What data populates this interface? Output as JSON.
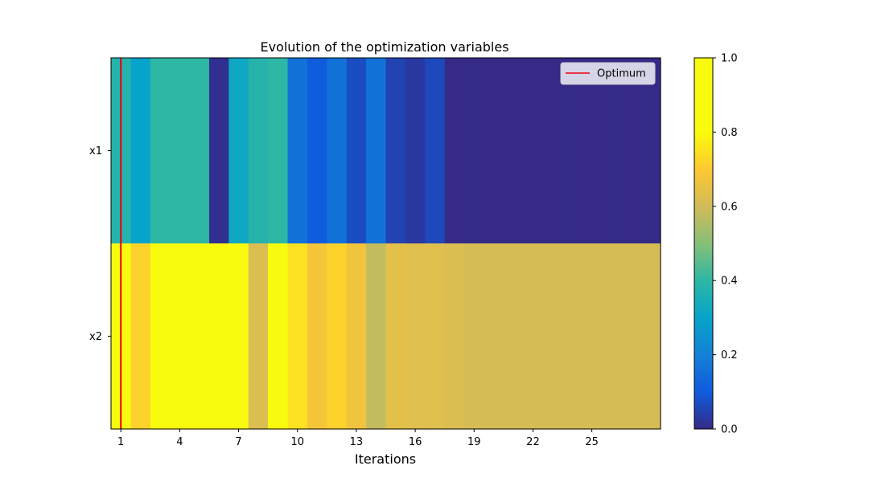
{
  "chart_data": {
    "type": "heatmap",
    "title": "Evolution of the optimization variables",
    "xlabel": "Iterations",
    "ylabel": "",
    "rows": [
      "x1",
      "x2"
    ],
    "x": [
      1,
      2,
      3,
      4,
      5,
      6,
      7,
      8,
      9,
      10,
      11,
      12,
      13,
      14,
      15,
      16,
      17,
      18,
      19,
      20,
      21,
      22,
      23,
      24,
      25,
      26,
      27,
      28
    ],
    "x_ticks": [
      "1",
      "4",
      "7",
      "10",
      "13",
      "16",
      "19",
      "22",
      "25"
    ],
    "xlim": [
      0.5,
      28.5
    ],
    "values": [
      [
        0.38,
        0.3,
        0.4,
        0.4,
        0.4,
        0.01,
        0.32,
        0.38,
        0.4,
        0.16,
        0.1,
        0.16,
        0.07,
        0.16,
        0.05,
        0.03,
        0.06,
        0.0,
        0.0,
        0.0,
        0.0,
        0.0,
        0.0,
        0.0,
        0.0,
        0.0,
        0.0,
        0.0
      ],
      [
        0.85,
        0.72,
        0.83,
        0.87,
        0.87,
        0.88,
        0.91,
        0.62,
        0.84,
        0.75,
        0.68,
        0.72,
        0.67,
        0.58,
        0.64,
        0.63,
        0.63,
        0.62,
        0.61,
        0.61,
        0.61,
        0.61,
        0.61,
        0.61,
        0.61,
        0.61,
        0.61,
        0.61
      ]
    ],
    "optimum_iteration": 1,
    "legend": {
      "entries": [
        "Optimum"
      ],
      "placement": "upper-right"
    },
    "colormap": "parula",
    "colorbar": {
      "range": [
        0.0,
        1.0
      ],
      "ticks": [
        "0.0",
        "0.2",
        "0.4",
        "0.6",
        "0.8",
        "1.0"
      ]
    },
    "grid": false,
    "colors": {
      "optimum_line": "#e8000b"
    }
  }
}
